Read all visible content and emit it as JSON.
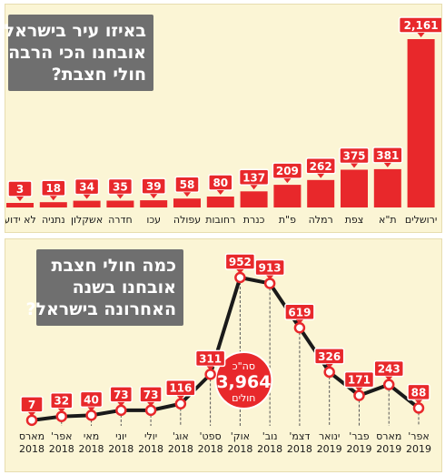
{
  "colors": {
    "accent": "#e8282b",
    "line": "#1a1a1a",
    "panel_bg": "#fbf5d5",
    "title_bg": "#6f6f6f"
  },
  "chart_data": [
    {
      "type": "bar",
      "title_lines": [
        "באיזו עיר בישראל",
        "אובחנו הכי הרבה",
        "חולי חצבת?"
      ],
      "categories": [
        "ירושלים",
        "ת\"א",
        "צפת",
        "רמלה",
        "פ\"ת",
        "כנרת",
        "רחובות",
        "עפולה",
        "עכו",
        "חדרה",
        "אשקלון",
        "נתניה",
        "לא ידוע"
      ],
      "values": [
        2161,
        381,
        375,
        262,
        209,
        137,
        80,
        58,
        39,
        35,
        34,
        18,
        3
      ],
      "value_labels": [
        "2,161",
        "381",
        "375",
        "262",
        "209",
        "137",
        "80",
        "58",
        "39",
        "35",
        "34",
        "18",
        "3"
      ],
      "direction": "right-to-left"
    },
    {
      "type": "line",
      "title_lines": [
        "כמה חולי חצבת",
        "אובחנו בשנה",
        "האחרונה בישראל?"
      ],
      "x": [
        {
          "month": "מארס",
          "year": "2018"
        },
        {
          "month": "אפר'",
          "year": "2018"
        },
        {
          "month": "מאי",
          "year": "2018"
        },
        {
          "month": "יוני",
          "year": "2018"
        },
        {
          "month": "יולי",
          "year": "2018"
        },
        {
          "month": "אוג'",
          "year": "2018"
        },
        {
          "month": "ספט'",
          "year": "2018"
        },
        {
          "month": "אוק'",
          "year": "2018"
        },
        {
          "month": "נוב'",
          "year": "2018"
        },
        {
          "month": "דצמ'",
          "year": "2018"
        },
        {
          "month": "ינואר",
          "year": "2019"
        },
        {
          "month": "פבר'",
          "year": "2019"
        },
        {
          "month": "מארס",
          "year": "2019"
        },
        {
          "month": "אפר'",
          "year": "2019"
        }
      ],
      "values": [
        7,
        32,
        40,
        73,
        73,
        116,
        311,
        952,
        913,
        619,
        326,
        171,
        243,
        88
      ],
      "annotation": {
        "line1": "סה\"כ",
        "value": "3,964",
        "line2": "חולים"
      },
      "direction": "left-to-right"
    }
  ]
}
